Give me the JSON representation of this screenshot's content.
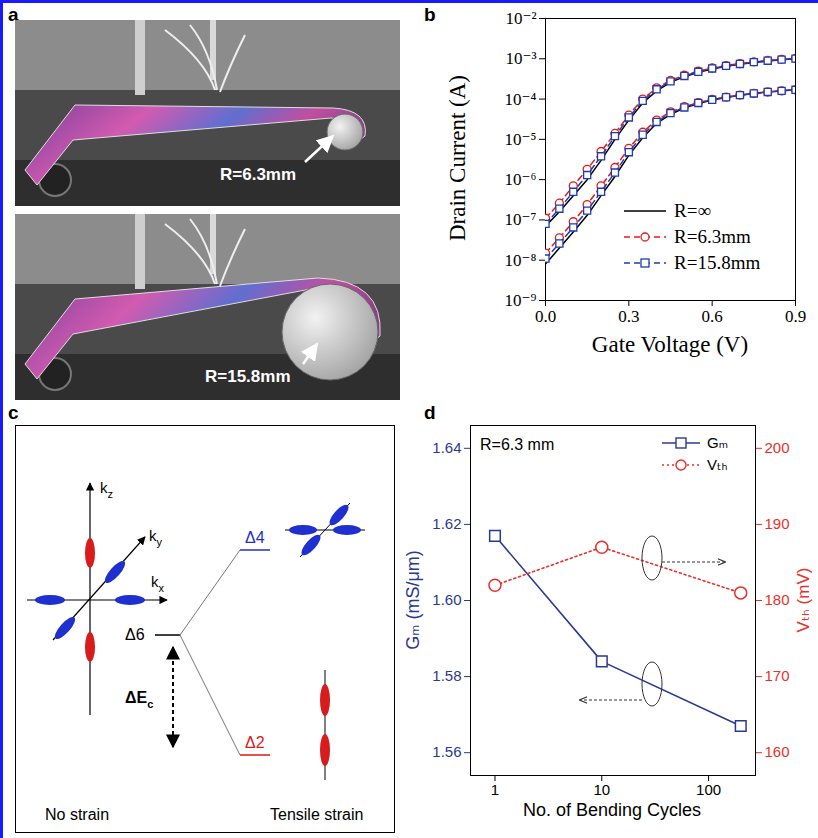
{
  "photos_a": {
    "panel": "a",
    "labels": [
      "R=6.3mm",
      "R=15.8mm"
    ]
  },
  "diagram_c": {
    "panel": "c",
    "axes": [
      {
        "text": "k",
        "sub": "z"
      },
      {
        "text": "k",
        "sub": "y"
      },
      {
        "text": "k",
        "sub": "x"
      }
    ],
    "levels": [
      "Δ6",
      "Δ4",
      "Δ2"
    ],
    "gap": {
      "text": "ΔE",
      "sub": "c"
    },
    "captions": [
      "No strain",
      "Tensile strain"
    ]
  },
  "chart_data": [
    {
      "type": "line",
      "panel": "b",
      "x_label": "Gate Voltage (V)",
      "y_label": "Drain Current (A)",
      "log": "y",
      "x": [
        0,
        0.05,
        0.1,
        0.15,
        0.2,
        0.25,
        0.3,
        0.35,
        0.4,
        0.45,
        0.5,
        0.55,
        0.6,
        0.65,
        0.7,
        0.75,
        0.8,
        0.85,
        0.9
      ],
      "xlim": [
        0,
        0.9
      ],
      "xticks": [
        {
          "value": 0,
          "label": "0.0"
        },
        0.3,
        0.6,
        0.9
      ],
      "ylim": [
        1e-09,
        0.01
      ],
      "yticks": [
        {
          "value": 1e-09,
          "label": "10⁻⁹"
        },
        {
          "value": 1e-08,
          "label": "10⁻⁸"
        },
        {
          "value": 1e-07,
          "label": "10⁻⁷"
        },
        {
          "value": 1e-06,
          "label": "10⁻⁶"
        },
        {
          "value": 1e-05,
          "label": "10⁻⁵"
        },
        {
          "value": 0.0001,
          "label": "10⁻⁴"
        },
        {
          "value": 0.001,
          "label": "10⁻³"
        },
        {
          "value": 0.01,
          "label": "10⁻²"
        }
      ],
      "legend": "bottom-right",
      "series": [
        {
          "name": "R=∞",
          "color": "#000000",
          "line_style": "solid",
          "values": [
            7e-08,
            1.6e-07,
            4e-07,
            1e-06,
            3e-06,
            1e-05,
            3e-05,
            8e-05,
            0.00016,
            0.00026,
            0.00036,
            0.00046,
            0.00056,
            0.00065,
            0.00073,
            0.00081,
            0.00088,
            0.00094,
            0.001
          ]
        },
        {
          "name": "R=6.3mm",
          "color": "#e41a1c",
          "line_style": "dashed",
          "marker": "circle",
          "values": [
            1.1e-07,
            2.6e-07,
            7e-07,
            1.8e-06,
            5e-06,
            1.4e-05,
            4e-05,
            0.0001,
            0.00019,
            0.00029,
            0.00039,
            0.00049,
            0.00059,
            0.00068,
            0.00076,
            0.00084,
            0.00091,
            0.00097,
            0.00103
          ]
        },
        {
          "name": "R=15.8mm",
          "color": "#1f3bb3",
          "line_style": "dashed",
          "marker": "square",
          "values": [
            8e-08,
            1.9e-07,
            5e-07,
            1.3e-06,
            3.8e-06,
            1.2e-05,
            3.5e-05,
            9e-05,
            0.000175,
            0.000275,
            0.000375,
            0.000475,
            0.000575,
            0.000665,
            0.000745,
            0.000825,
            0.000895,
            0.000955,
            0.00101
          ]
        },
        {
          "name": "R=∞",
          "color": "#000000",
          "line_style": "solid",
          "values": [
            8e-09,
            2e-08,
            5e-08,
            1.3e-07,
            4e-07,
            1.2e-06,
            4e-06,
            1.1e-05,
            2.5e-05,
            4.2e-05,
            6e-05,
            7.8e-05,
            9.5e-05,
            0.00011,
            0.000125,
            0.000138,
            0.00015,
            0.00016,
            0.00017
          ]
        },
        {
          "name": "R=6.3mm",
          "color": "#e41a1c",
          "line_style": "dashed",
          "marker": "circle",
          "values": [
            1.5e-08,
            3.6e-08,
            9e-08,
            2.4e-07,
            7e-07,
            2e-06,
            6e-06,
            1.5e-05,
            3e-05,
            4.8e-05,
            6.5e-05,
            8.2e-05,
            9.8e-05,
            0.000112,
            0.000126,
            0.000139,
            0.00015,
            0.00016,
            0.00017
          ]
        },
        {
          "name": "R=15.8mm",
          "color": "#1f3bb3",
          "line_style": "dashed",
          "marker": "square",
          "values": [
            1.1e-08,
            2.6e-08,
            6.5e-08,
            1.7e-07,
            5e-07,
            1.5e-06,
            4.8e-06,
            1.3e-05,
            2.7e-05,
            4.5e-05,
            6.2e-05,
            8e-05,
            9.6e-05,
            0.000111,
            0.000125,
            0.000138,
            0.00015,
            0.00016,
            0.00017
          ]
        }
      ]
    },
    {
      "type": "line",
      "panel": "d",
      "annotation": "R=6.3 mm",
      "x_label": "No. of Bending Cycles",
      "y_label": "Gₘ (mS/μm)",
      "y2_label": "Vₜₕ (mV)",
      "log": "x",
      "x": [
        1,
        10,
        200
      ],
      "xlim": [
        0.59,
        275
      ],
      "xticks": [
        1,
        10,
        100
      ],
      "ylim": [
        1.554,
        1.646
      ],
      "yticks": [
        1.56,
        1.58,
        {
          "value": 1.6,
          "label": "1.60"
        },
        1.62,
        1.64
      ],
      "y2lim": [
        157,
        203
      ],
      "y2ticks": [
        160,
        170,
        180,
        190,
        200
      ],
      "legend": "top-right",
      "series": [
        {
          "name": "Gₘ",
          "color": "#2b3990",
          "marker": "square",
          "line_style": "solid",
          "values": [
            1.617,
            1.584,
            1.567
          ]
        },
        {
          "name": "Vₜₕ",
          "color": "#e8312a",
          "marker": "circle",
          "line_style": "dotted",
          "axis": "y2",
          "values": [
            182,
            187,
            181
          ]
        }
      ]
    }
  ]
}
